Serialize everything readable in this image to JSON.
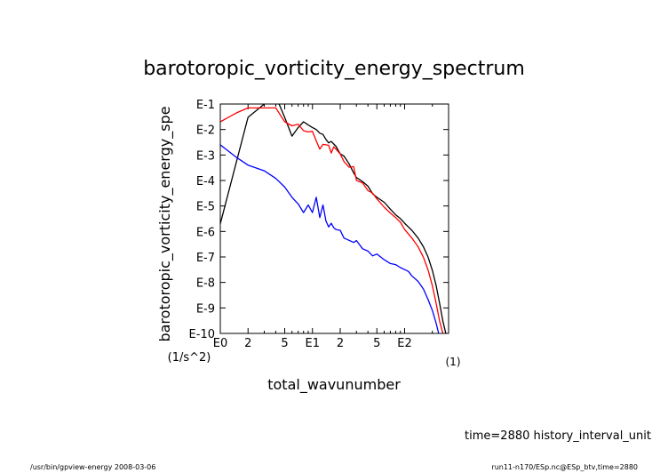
{
  "chart_data": {
    "type": "line",
    "title": "barotoropic_vorticity_energy_spectrum",
    "xlabel": "total_wavunumber",
    "xunit": "(1)",
    "ylabel": "barotoropic_vorticity_energy_spe",
    "yunit": "(1/s^2)",
    "x_scale": "log",
    "y_scale": "log",
    "xlim": [
      1,
      300
    ],
    "ylim": [
      1e-10,
      0.1
    ],
    "grid": false,
    "x_ticks": [
      {
        "value": 1,
        "label": "E0"
      },
      {
        "value": 2,
        "label": "2"
      },
      {
        "value": 5,
        "label": "5"
      },
      {
        "value": 10,
        "label": "E1"
      },
      {
        "value": 20,
        "label": "2"
      },
      {
        "value": 50,
        "label": "5"
      },
      {
        "value": 100,
        "label": "E2"
      }
    ],
    "y_ticks": [
      {
        "value": 0.1,
        "label": "E-1"
      },
      {
        "value": 0.01,
        "label": "E-2"
      },
      {
        "value": 0.001,
        "label": "E-3"
      },
      {
        "value": 0.0001,
        "label": "E-4"
      },
      {
        "value": 1e-05,
        "label": "E-5"
      },
      {
        "value": 1e-06,
        "label": "E-6"
      },
      {
        "value": 1e-07,
        "label": "E-7"
      },
      {
        "value": 1e-08,
        "label": "E-8"
      },
      {
        "value": 1e-09,
        "label": "E-9"
      },
      {
        "value": 1e-10,
        "label": "E-10"
      }
    ],
    "series": [
      {
        "color": "#000000",
        "x": [
          1,
          2,
          3,
          4,
          5,
          6,
          7,
          8,
          9,
          10,
          11,
          12,
          13,
          14,
          15,
          16,
          17,
          18,
          20,
          22,
          25,
          28,
          30,
          35,
          40,
          45,
          50,
          60,
          70,
          80,
          90,
          100,
          120,
          140,
          160,
          180,
          200,
          220,
          240,
          260,
          280
        ],
        "y": [
          2e-06,
          0.03,
          0.1,
          0.2,
          0.03,
          0.0055,
          0.012,
          0.02,
          0.015,
          0.012,
          0.01,
          0.0072,
          0.0064,
          0.0041,
          0.003,
          0.0034,
          0.0027,
          0.0022,
          0.0011,
          0.0009,
          0.00045,
          0.0002,
          0.00013,
          9e-05,
          6e-05,
          3e-05,
          2.2e-05,
          1.4e-05,
          7.5e-06,
          4.5e-06,
          3.2e-06,
          2.1e-06,
          1.1e-06,
          5.5e-07,
          2.5e-07,
          9.7e-08,
          3e-08,
          7.5e-09,
          1.5e-09,
          3e-10,
          1e-10
        ]
      },
      {
        "color": "#ff0000",
        "x": [
          1,
          1.5,
          2,
          3,
          4,
          5,
          6,
          7,
          8,
          9,
          10,
          11,
          12,
          13,
          14,
          15,
          16,
          17,
          18,
          20,
          22,
          25,
          28,
          30,
          35,
          40,
          45,
          50,
          60,
          70,
          80,
          90,
          100,
          120,
          140,
          160,
          180,
          200,
          220,
          240,
          260,
          280
        ],
        "y": [
          0.02,
          0.045,
          0.07,
          0.07,
          0.07,
          0.02,
          0.014,
          0.016,
          0.009,
          0.008,
          0.0085,
          0.0036,
          0.0017,
          0.0026,
          0.0025,
          0.0024,
          0.0012,
          0.0021,
          0.0017,
          0.0011,
          0.00055,
          0.00033,
          0.00035,
          0.0001,
          8e-05,
          4e-05,
          3.2e-05,
          1.9e-05,
          9e-06,
          5.3e-06,
          3.5e-06,
          2.3e-06,
          1.2e-06,
          5.5e-07,
          2.5e-07,
          9.7e-08,
          3e-08,
          7.5e-09,
          1.5e-09,
          3e-10,
          1e-10,
          5e-11
        ]
      },
      {
        "color": "#0000ff",
        "x": [
          1,
          1.5,
          2,
          3,
          4,
          5,
          6,
          7,
          8,
          9,
          10,
          11,
          12,
          13,
          14,
          15,
          16,
          17,
          18,
          20,
          22,
          25,
          28,
          30,
          35,
          40,
          45,
          50,
          60,
          70,
          80,
          90,
          100,
          110,
          120,
          140,
          160,
          180,
          200,
          220,
          240,
          260
        ],
        "y": [
          0.0025,
          0.0008,
          0.0004,
          0.00024,
          0.00012,
          5.5e-05,
          2.2e-05,
          1.2e-05,
          5.5e-06,
          1.1e-05,
          5.5e-06,
          2.2e-05,
          3.5e-06,
          1.1e-05,
          2.6e-06,
          1.5e-06,
          2.1e-06,
          1.4e-06,
          1.2e-06,
          1.1e-06,
          5.5e-07,
          4.5e-07,
          3.7e-07,
          4.4e-07,
          2.1e-07,
          1.7e-07,
          1.1e-07,
          1.3e-07,
          7.8e-08,
          5.5e-08,
          5e-08,
          3.8e-08,
          3.2e-08,
          2.7e-08,
          1.8e-08,
          1.1e-08,
          5.5e-09,
          2.1e-09,
          8e-10,
          2.5e-10,
          7e-11,
          2e-11
        ]
      }
    ]
  },
  "footer": {
    "time_label": "time=2880 history_interval_unit",
    "left_text": "/usr/bin/gpview-energy  2008-03-06",
    "right_text": "run11-n170/ESp.nc@ESp_btv,time=2880"
  }
}
